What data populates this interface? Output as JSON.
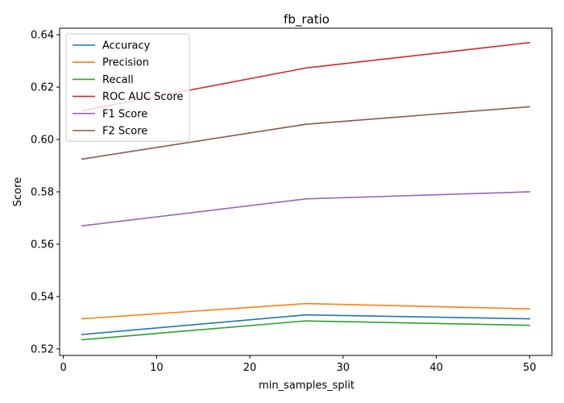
{
  "chart_data": {
    "type": "line",
    "title": "fb_ratio",
    "xlabel": "min_samples_split",
    "ylabel": "Score",
    "x": [
      2,
      26,
      50
    ],
    "xlim": [
      -0.4,
      52.4
    ],
    "ylim": [
      0.5175,
      0.6425
    ],
    "xticks": [
      0,
      10,
      20,
      30,
      40,
      50
    ],
    "yticks": [
      0.52,
      0.54,
      0.56,
      0.58,
      0.6,
      0.62,
      0.64
    ],
    "ytick_labels": [
      "0.52",
      "0.54",
      "0.56",
      "0.58",
      "0.60",
      "0.62",
      "0.64"
    ],
    "grid": false,
    "legend_position": "upper-left",
    "series": [
      {
        "name": "Accuracy",
        "color": "#1f77b4",
        "values": [
          0.5255,
          0.533,
          0.5315
        ]
      },
      {
        "name": "Precision",
        "color": "#ff7f0e",
        "values": [
          0.5315,
          0.5373,
          0.5353
        ]
      },
      {
        "name": "Recall",
        "color": "#2ca02c",
        "values": [
          0.5235,
          0.5307,
          0.529
        ]
      },
      {
        "name": "ROC AUC Score",
        "color": "#d62728",
        "values": [
          0.611,
          0.6273,
          0.637
        ]
      },
      {
        "name": "F1 Score",
        "color": "#9467bd",
        "values": [
          0.567,
          0.5773,
          0.58
        ]
      },
      {
        "name": "F2 Score",
        "color": "#8c564b",
        "values": [
          0.5925,
          0.6058,
          0.6125
        ]
      }
    ]
  }
}
